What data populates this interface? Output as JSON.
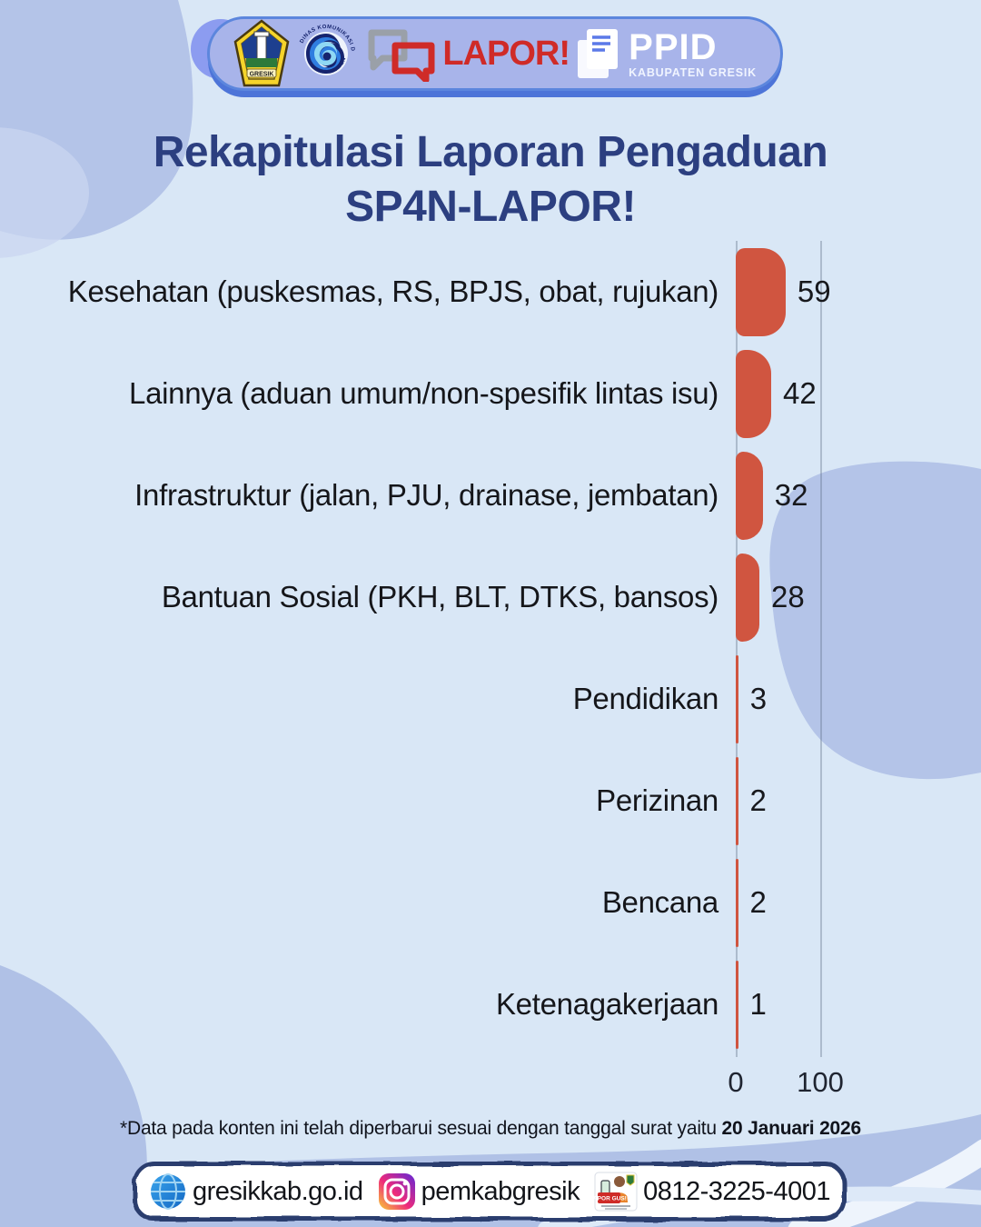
{
  "header": {
    "gresik_crest_label": "GRESIK",
    "kominfo_ring_top": "DINAS KOMUNIKASI DAN INFORMATIKA",
    "kominfo_ring_bottom": "KABUPATEN GRESIK",
    "lapor_text": "LAPOR!",
    "ppid_title": "PPID",
    "ppid_subtitle": "KABUPATEN GRESIK"
  },
  "title": {
    "line1": "Rekapitulasi Laporan Pengaduan",
    "line2": "SP4N-LAPOR!"
  },
  "chart_data": {
    "type": "bar",
    "orientation": "horizontal",
    "categories": [
      "Kesehatan (puskesmas, RS, BPJS, obat, rujukan)",
      "Lainnya (aduan umum/non-spesifik lintas isu)",
      "Infrastruktur (jalan, PJU, drainase, jembatan)",
      "Bantuan Sosial (PKH, BLT, DTKS, bansos)",
      "Pendidikan",
      "Perizinan",
      "Bencana",
      "Ketenagakerjaan"
    ],
    "values": [
      59,
      42,
      32,
      28,
      3,
      2,
      2,
      1
    ],
    "xlim": [
      0,
      100
    ],
    "x_tick_labels": [
      "0",
      "100"
    ],
    "bar_color": "#d05540",
    "value_labels_shown": true,
    "grid": "vertical axis lines at x=0 and x=100",
    "legend": "none"
  },
  "footnote": {
    "text": "*Data pada konten ini telah diperbarui  sesuai dengan tanggal surat yaitu ",
    "date_bold": "20 Januari 2026"
  },
  "contacts": {
    "website": "gresikkab.go.id",
    "instagram": "pemkabgresik",
    "phone": "0812-3225-4001",
    "mascot_badge": "LAPOR GUS!!"
  },
  "colors": {
    "background": "#d9e7f6",
    "blob": "#b4c4e8",
    "header_pill": "#a8b4ea",
    "header_border": "#5c86dd",
    "title": "#2c3f80",
    "bar": "#d05540",
    "text_dark": "#16181d",
    "contact_border": "#2c3c6e",
    "lapor_red": "#cf2b28"
  }
}
